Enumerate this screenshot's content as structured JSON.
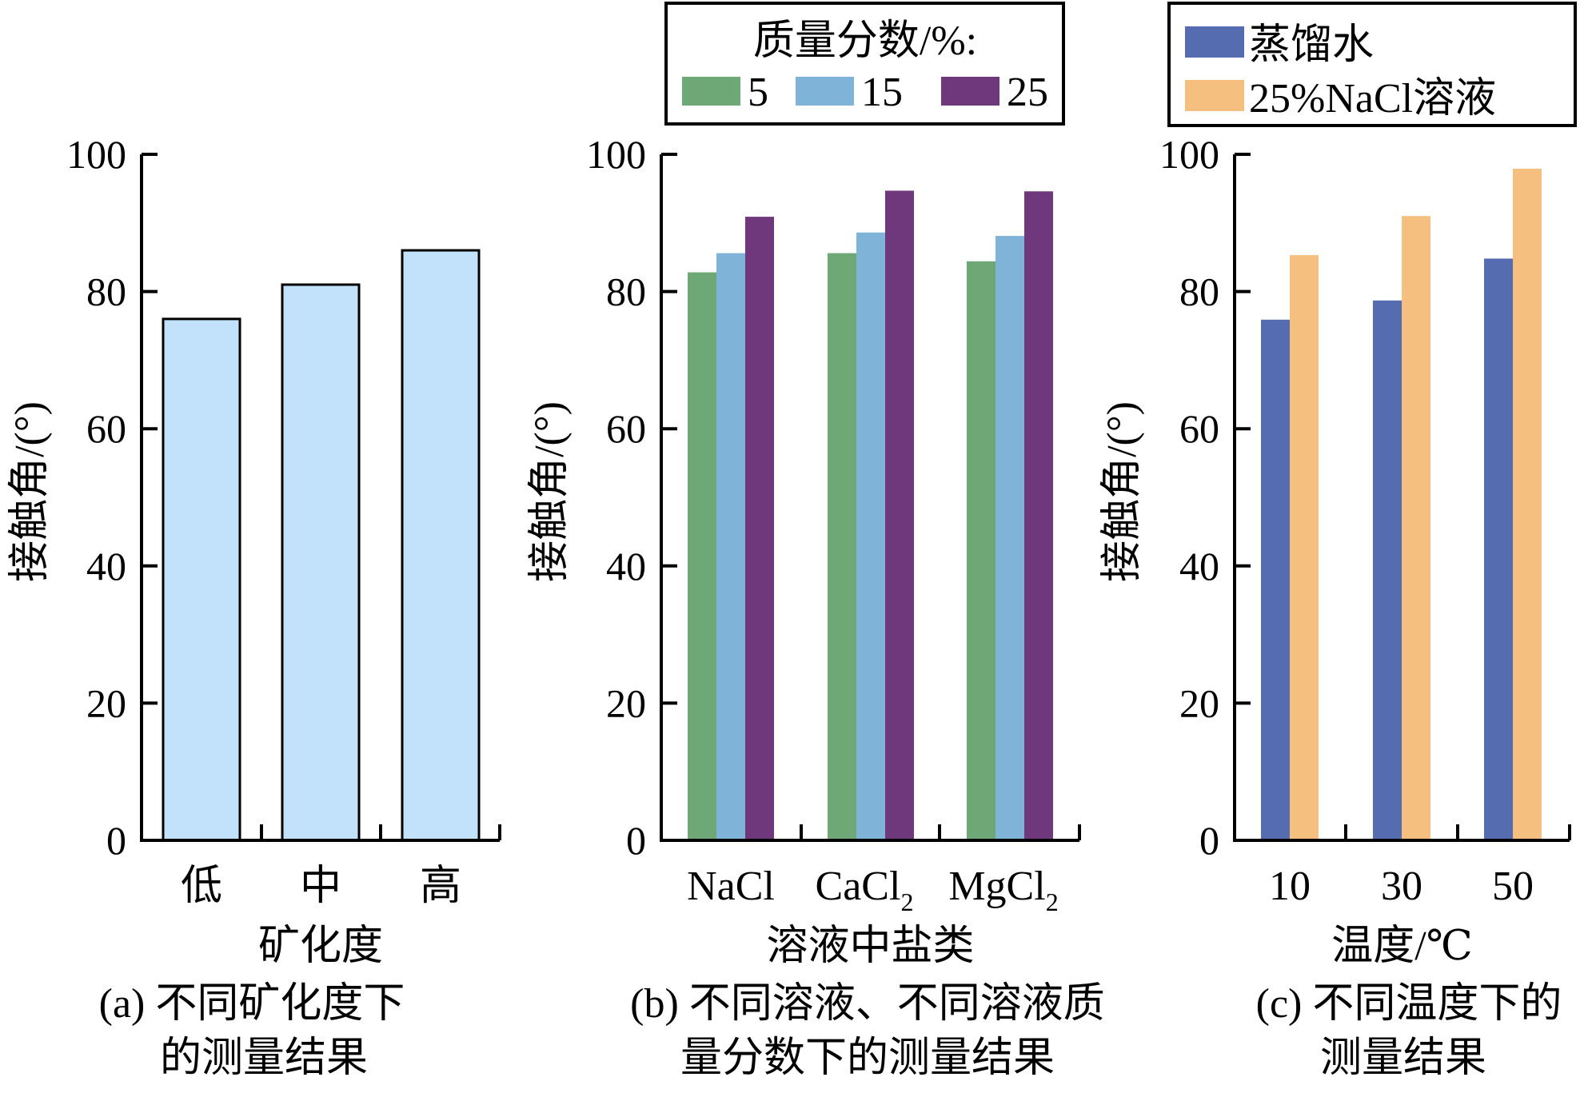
{
  "chart_data": [
    {
      "id": "a",
      "type": "bar",
      "title": "",
      "caption_lines": [
        "(a) 不同矿化度下",
        "的测量结果"
      ],
      "xlabel": "矿化度",
      "ylabel": "接触角/(°)",
      "ylim": [
        0,
        100
      ],
      "yticks": [
        "0",
        "20",
        "40",
        "60",
        "80",
        "100"
      ],
      "categories": [
        "低",
        "中",
        "高"
      ],
      "series": [
        {
          "name": "",
          "color": "#c2e2fb",
          "stroke": "#000000",
          "values": [
            76,
            81,
            86
          ]
        }
      ],
      "legend": null
    },
    {
      "id": "b",
      "type": "bar",
      "title": "",
      "caption_lines": [
        "(b) 不同溶液、不同溶液质",
        "量分数下的测量结果"
      ],
      "xlabel": "溶液中盐类",
      "ylabel": "接触角/(°)",
      "ylim": [
        0,
        100
      ],
      "yticks": [
        "0",
        "20",
        "40",
        "60",
        "80",
        "100"
      ],
      "categories": [
        {
          "main": "NaCl",
          "sub": ""
        },
        {
          "main": "CaCl",
          "sub": "2"
        },
        {
          "main": "MgCl",
          "sub": "2"
        }
      ],
      "series": [
        {
          "name": "5",
          "color": "#6fa877",
          "values": [
            82.8,
            85.6,
            84.4
          ]
        },
        {
          "name": "15",
          "color": "#7fb3d8",
          "values": [
            85.6,
            88.6,
            88.1
          ]
        },
        {
          "name": "25",
          "color": "#6f377c",
          "values": [
            90.9,
            94.7,
            94.6
          ]
        }
      ],
      "legend": {
        "title": "质量分数/%:",
        "placement": "top"
      }
    },
    {
      "id": "c",
      "type": "bar",
      "title": "",
      "caption_lines": [
        "(c) 不同温度下的",
        "测量结果"
      ],
      "xlabel": "温度/℃",
      "ylabel": "接触角/(°)",
      "ylim": [
        0,
        100
      ],
      "yticks": [
        "0",
        "20",
        "40",
        "60",
        "80",
        "100"
      ],
      "categories": [
        "10",
        "30",
        "50"
      ],
      "series": [
        {
          "name": "蒸馏水",
          "color": "#556cb0",
          "values": [
            75.9,
            78.7,
            84.8
          ]
        },
        {
          "name": "25%NaCl溶液",
          "color": "#f5bf7f",
          "values": [
            85.3,
            91.0,
            97.9
          ]
        }
      ],
      "legend": {
        "title": "",
        "placement": "top"
      }
    }
  ]
}
